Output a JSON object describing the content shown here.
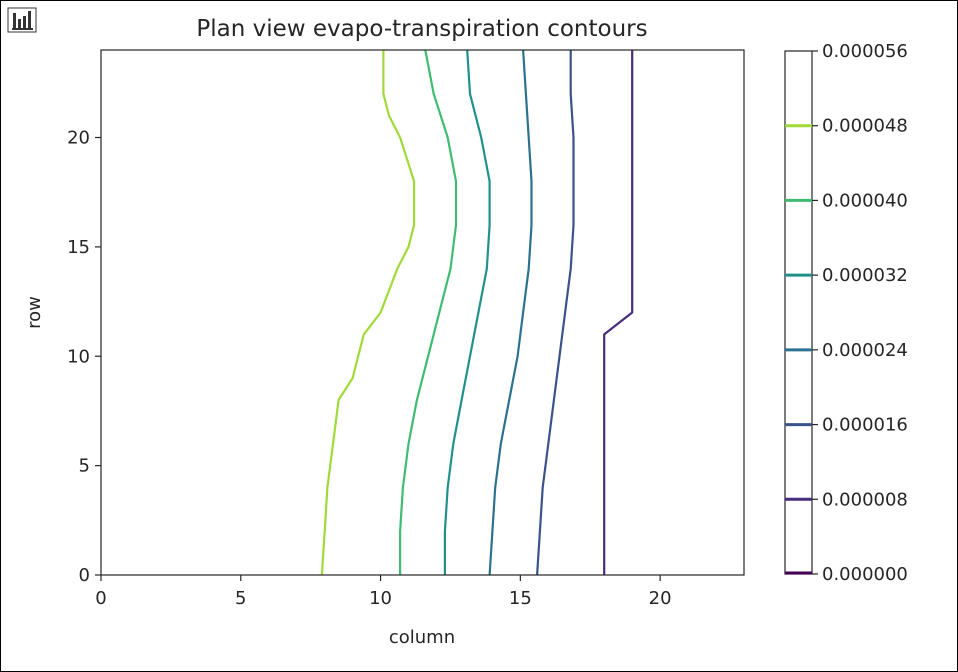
{
  "toolbar": {
    "icon": "bar-chart-icon"
  },
  "chart_data": {
    "type": "contour",
    "title": "Plan view evapo-transpiration contours",
    "xlabel": "column",
    "ylabel": "row",
    "xlim": [
      0,
      23
    ],
    "ylim": [
      0,
      24
    ],
    "xticks": [
      0,
      5,
      10,
      15,
      20
    ],
    "yticks": [
      0,
      5,
      10,
      15,
      20
    ],
    "series": [
      {
        "level": 8e-06,
        "color": "#472d7b",
        "points": [
          [
            18.0,
            0
          ],
          [
            18.0,
            3
          ],
          [
            18.0,
            6
          ],
          [
            18.0,
            9
          ],
          [
            18.0,
            11
          ],
          [
            19.0,
            12
          ],
          [
            19.0,
            14
          ],
          [
            19.0,
            17
          ],
          [
            19.0,
            20
          ],
          [
            19.0,
            24
          ]
        ]
      },
      {
        "level": 1.6e-05,
        "color": "#3b528b",
        "points": [
          [
            15.6,
            0
          ],
          [
            15.7,
            2
          ],
          [
            15.8,
            4
          ],
          [
            16.0,
            6
          ],
          [
            16.2,
            8
          ],
          [
            16.4,
            10
          ],
          [
            16.6,
            12
          ],
          [
            16.8,
            14
          ],
          [
            16.9,
            16
          ],
          [
            16.9,
            18
          ],
          [
            16.9,
            20
          ],
          [
            16.8,
            22
          ],
          [
            16.8,
            24
          ]
        ]
      },
      {
        "level": 2.4e-05,
        "color": "#2c728e",
        "points": [
          [
            13.9,
            0
          ],
          [
            14.0,
            2
          ],
          [
            14.1,
            4
          ],
          [
            14.3,
            6
          ],
          [
            14.6,
            8
          ],
          [
            14.9,
            10
          ],
          [
            15.1,
            12
          ],
          [
            15.3,
            14
          ],
          [
            15.4,
            16
          ],
          [
            15.4,
            18
          ],
          [
            15.3,
            20
          ],
          [
            15.2,
            22
          ],
          [
            15.1,
            24
          ]
        ]
      },
      {
        "level": 3.2e-05,
        "color": "#21918c",
        "points": [
          [
            12.3,
            0
          ],
          [
            12.3,
            2
          ],
          [
            12.4,
            4
          ],
          [
            12.6,
            6
          ],
          [
            12.9,
            8
          ],
          [
            13.2,
            10
          ],
          [
            13.5,
            12
          ],
          [
            13.8,
            14
          ],
          [
            13.9,
            16
          ],
          [
            13.9,
            18
          ],
          [
            13.6,
            20
          ],
          [
            13.2,
            22
          ],
          [
            13.1,
            24
          ]
        ]
      },
      {
        "level": 4e-05,
        "color": "#3fbc73",
        "points": [
          [
            10.7,
            0
          ],
          [
            10.7,
            2
          ],
          [
            10.8,
            4
          ],
          [
            11.0,
            6
          ],
          [
            11.3,
            8
          ],
          [
            11.7,
            10
          ],
          [
            12.1,
            12
          ],
          [
            12.5,
            14
          ],
          [
            12.7,
            16
          ],
          [
            12.7,
            18
          ],
          [
            12.4,
            20
          ],
          [
            11.9,
            22
          ],
          [
            11.6,
            24
          ]
        ]
      },
      {
        "level": 4.8e-05,
        "color": "#a0da39",
        "points": [
          [
            7.9,
            0
          ],
          [
            8.0,
            2
          ],
          [
            8.1,
            4
          ],
          [
            8.3,
            6
          ],
          [
            8.5,
            8
          ],
          [
            9.0,
            9
          ],
          [
            9.4,
            11
          ],
          [
            10.0,
            12
          ],
          [
            10.6,
            14
          ],
          [
            11.0,
            15
          ],
          [
            11.2,
            16
          ],
          [
            11.2,
            18
          ],
          [
            10.7,
            20
          ],
          [
            10.3,
            21
          ],
          [
            10.1,
            22
          ],
          [
            10.1,
            24
          ]
        ]
      }
    ],
    "colorbar": {
      "ticks": [
        {
          "label": "0.000000",
          "value": 0.0,
          "color": "#440154"
        },
        {
          "label": "0.000008",
          "value": 8e-06,
          "color": "#472d7b"
        },
        {
          "label": "0.000016",
          "value": 1.6e-05,
          "color": "#3b528b"
        },
        {
          "label": "0.000024",
          "value": 2.4e-05,
          "color": "#2c728e"
        },
        {
          "label": "0.000032",
          "value": 3.2e-05,
          "color": "#21918c"
        },
        {
          "label": "0.000040",
          "value": 4e-05,
          "color": "#3fbc73"
        },
        {
          "label": "0.000048",
          "value": 4.8e-05,
          "color": "#a0da39"
        },
        {
          "label": "0.000056",
          "value": 5.6e-05,
          "color": "#fde725"
        }
      ],
      "range": [
        0,
        5.6e-05
      ]
    }
  }
}
